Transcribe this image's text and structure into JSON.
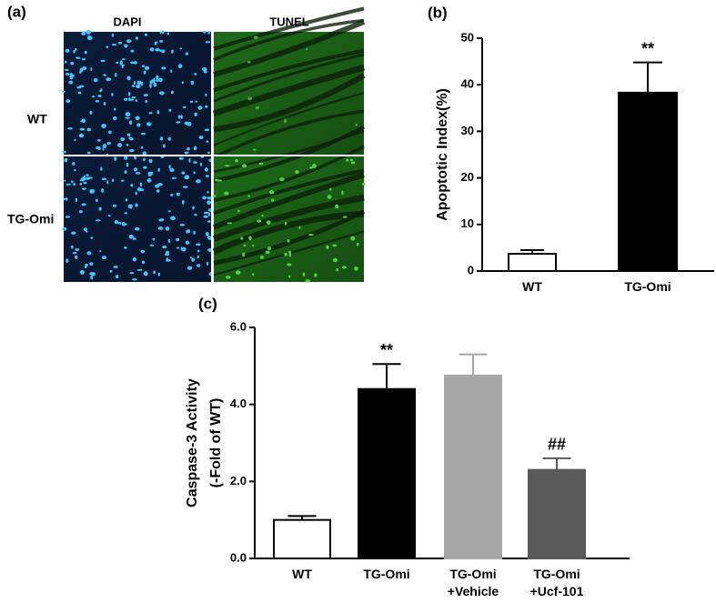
{
  "panel_a": {
    "label": "(a)",
    "columns": [
      "DAPI",
      "TUNEL"
    ],
    "rows": [
      "WT",
      "TG-Omi"
    ]
  },
  "chart_data": [
    {
      "type": "bar",
      "panel_label": "(b)",
      "ylabel": [
        "Apoptotic Index(%)"
      ],
      "categories": [
        "WT",
        "TG-Omi"
      ],
      "values": [
        3.7,
        38.3
      ],
      "errors": [
        0.8,
        6.5
      ],
      "colors": [
        "#ffffff",
        "#000000"
      ],
      "annotations": [
        {
          "text": "**",
          "x": "TG-Omi"
        }
      ],
      "ylim": [
        0,
        50
      ],
      "yticks": [
        0,
        10,
        20,
        30,
        40,
        50
      ]
    },
    {
      "type": "bar",
      "panel_label": "(c)",
      "ylabel": [
        "Caspase-3  Activity",
        "(-Fold of WT)"
      ],
      "categories": [
        "WT",
        "TG-Omi",
        "TG-Omi\n+Vehicle",
        "TG-Omi\n+Ucf-101"
      ],
      "values": [
        1.0,
        4.4,
        4.75,
        2.3
      ],
      "errors": [
        0.1,
        0.65,
        0.55,
        0.3
      ],
      "colors": [
        "#ffffff",
        "#000000",
        "#a6a6a6",
        "#595959"
      ],
      "annotations": [
        {
          "text": "**",
          "x": "TG-Omi"
        },
        {
          "text": "##",
          "x": "TG-Omi\n+Ucf-101"
        }
      ],
      "ylim": [
        0,
        6
      ],
      "yticks": [
        {
          "value": 0,
          "label": "0.0"
        },
        {
          "value": 2,
          "label": "2.0"
        },
        {
          "value": 4,
          "label": "4.0"
        },
        {
          "value": 6,
          "label": "6.0"
        }
      ]
    }
  ]
}
